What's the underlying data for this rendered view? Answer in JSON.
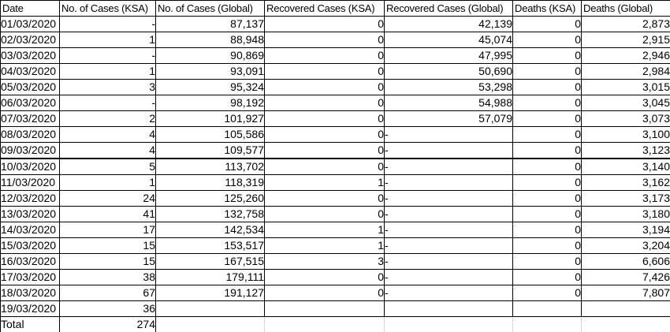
{
  "table": {
    "columns": [
      {
        "key": "date",
        "label": "Date",
        "align": "left"
      },
      {
        "key": "cases_ksa",
        "label": "No. of Cases (KSA)",
        "align": "right",
        "dash_style": "accounting"
      },
      {
        "key": "cases_global",
        "label": "No. of Cases (Global)",
        "align": "right"
      },
      {
        "key": "recovered_ksa",
        "label": "Recovered Cases (KSA)",
        "align": "right"
      },
      {
        "key": "recovered_global",
        "label": "Recovered Cases (Global)",
        "align": "right",
        "dash_style": "left"
      },
      {
        "key": "deaths_ksa",
        "label": "Deaths (KSA)",
        "align": "right"
      },
      {
        "key": "deaths_global",
        "label": "Deaths (Global)",
        "align": "right"
      }
    ],
    "rows": [
      [
        "01/03/2020",
        "-",
        "87,137",
        "0",
        "42,139",
        "0",
        "2,873"
      ],
      [
        "02/03/2020",
        "1",
        "88,948",
        "0",
        "45,074",
        "0",
        "2,915"
      ],
      [
        "03/03/2020",
        "-",
        "90,869",
        "0",
        "47,995",
        "0",
        "2,946"
      ],
      [
        "04/03/2020",
        "1",
        "93,091",
        "0",
        "50,690",
        "0",
        "2,984"
      ],
      [
        "05/03/2020",
        "3",
        "95,324",
        "0",
        "53,298",
        "0",
        "3,015"
      ],
      [
        "06/03/2020",
        "-",
        "98,192",
        "0",
        "54,988",
        "0",
        "3,045"
      ],
      [
        "07/03/2020",
        "2",
        "101,927",
        "0",
        "57,079",
        "0",
        "3,073"
      ],
      [
        "08/03/2020",
        "4",
        "105,586",
        "0",
        "-",
        "0",
        "3,100"
      ],
      [
        "09/03/2020",
        "4",
        "109,577",
        "0",
        "-",
        "0",
        "3,123"
      ],
      [
        "10/03/2020",
        "5",
        "113,702",
        "0",
        "-",
        "0",
        "3,140"
      ],
      [
        "11/03/2020",
        "1",
        "118,319",
        "1",
        "-",
        "0",
        "3,162"
      ],
      [
        "12/03/2020",
        "24",
        "125,260",
        "0",
        "-",
        "0",
        "3,173"
      ],
      [
        "13/03/2020",
        "41",
        "132,758",
        "0",
        "-",
        "0",
        "3,180"
      ],
      [
        "14/03/2020",
        "17",
        "142,534",
        "1",
        "-",
        "0",
        "3,194"
      ],
      [
        "15/03/2020",
        "15",
        "153,517",
        "1",
        "-",
        "0",
        "3,204"
      ],
      [
        "16/03/2020",
        "15",
        "167,515",
        "3",
        "-",
        "0",
        "6,606"
      ],
      [
        "17/03/2020",
        "38",
        "179,111",
        "0",
        "-",
        "0",
        "7,426"
      ],
      [
        "18/03/2020",
        "67",
        "191,127",
        "0",
        "-",
        "0",
        "7,807"
      ],
      [
        "19/03/2020",
        "36",
        "",
        "",
        "",
        "",
        ""
      ]
    ],
    "thick_border_after_date": "09/03/2020",
    "total_row": {
      "label": "Total",
      "cases_ksa_total": "274"
    }
  },
  "colors": {
    "border": "#000000",
    "gridline": "#d6d6d6",
    "text": "#000000",
    "background": "#ffffff"
  }
}
